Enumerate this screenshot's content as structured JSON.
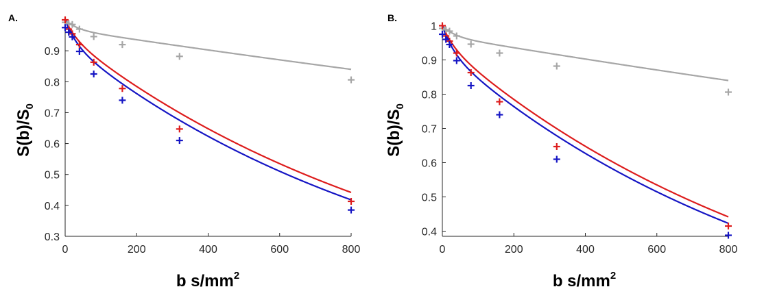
{
  "chart_data": [
    {
      "type": "scatter",
      "panel_label": "A.",
      "xlabel": "b s/mm",
      "xlabel_sup": "2",
      "ylabel": "S(b)/S",
      "ylabel_sub": "0",
      "xlim": [
        0,
        800
      ],
      "ylim": [
        0.3,
        1.0
      ],
      "xticks": [
        0,
        200,
        400,
        600,
        800
      ],
      "yticks": [
        0.3,
        0.4,
        0.5,
        0.6,
        0.7,
        0.8,
        0.9
      ],
      "grid": false,
      "series": [
        {
          "name": "gray",
          "color": "#a6a6a6",
          "markers": {
            "b": [
              0,
              10,
              20,
              40,
              80,
              160,
              320,
              800
            ],
            "s": [
              0.992,
              0.988,
              0.985,
              0.97,
              0.946,
              0.92,
              0.882,
              0.806
            ]
          },
          "fit": {
            "f": 0.03,
            "dstar": 0.03,
            "d": 0.00018
          }
        },
        {
          "name": "red",
          "color": "#dd1c1c",
          "markers": {
            "b": [
              0,
              10,
              20,
              40,
              80,
              160,
              320,
              800
            ],
            "s": [
              1.0,
              0.97,
              0.955,
              0.92,
              0.863,
              0.778,
              0.647,
              0.413
            ]
          },
          "fit": {
            "f": 0.05,
            "dstar": 0.03,
            "d": 0.000957
          }
        },
        {
          "name": "blue",
          "color": "#1515c4",
          "markers": {
            "b": [
              0,
              10,
              20,
              40,
              80,
              160,
              320,
              800
            ],
            "s": [
              0.975,
              0.96,
              0.945,
              0.898,
              0.825,
              0.74,
              0.61,
              0.385
            ]
          },
          "fit": {
            "f": 0.07,
            "dstar": 0.03,
            "d": 0.001
          }
        }
      ]
    },
    {
      "type": "scatter",
      "panel_label": "B.",
      "xlabel": "b s/mm",
      "xlabel_sup": "2",
      "ylabel": "S(b)/S",
      "ylabel_sub": "0",
      "xlim": [
        0,
        800
      ],
      "ylim": [
        0.385,
        1.005
      ],
      "xticks": [
        0,
        200,
        400,
        600,
        800
      ],
      "yticks": [
        0.4,
        0.5,
        0.6,
        0.7,
        0.8,
        0.9,
        1.0
      ],
      "ytick_labels": [
        "0.4",
        "0.5",
        "0.6",
        "0.7",
        "0.8",
        "0.9",
        "1"
      ],
      "grid": false,
      "series": [
        {
          "name": "gray",
          "color": "#a6a6a6",
          "markers": {
            "b": [
              0,
              10,
              20,
              40,
              80,
              160,
              320,
              800
            ],
            "s": [
              0.992,
              0.988,
              0.984,
              0.97,
              0.946,
              0.92,
              0.882,
              0.806
            ]
          },
          "fit": {
            "f": 0.03,
            "dstar": 0.03,
            "d": 0.00018
          }
        },
        {
          "name": "red",
          "color": "#dd1c1c",
          "markers": {
            "b": [
              0,
              10,
              20,
              40,
              80,
              160,
              320,
              800
            ],
            "s": [
              1.0,
              0.97,
              0.955,
              0.92,
              0.863,
              0.778,
              0.647,
              0.415
            ]
          },
          "fit": {
            "f": 0.05,
            "dstar": 0.03,
            "d": 0.000957
          }
        },
        {
          "name": "blue",
          "color": "#1515c4",
          "markers": {
            "b": [
              0,
              10,
              20,
              40,
              80,
              160,
              320,
              800
            ],
            "s": [
              0.975,
              0.96,
              0.945,
              0.898,
              0.825,
              0.74,
              0.61,
              0.388
            ]
          },
          "fit": {
            "f": 0.07,
            "dstar": 0.03,
            "d": 0.000985
          }
        }
      ]
    }
  ]
}
